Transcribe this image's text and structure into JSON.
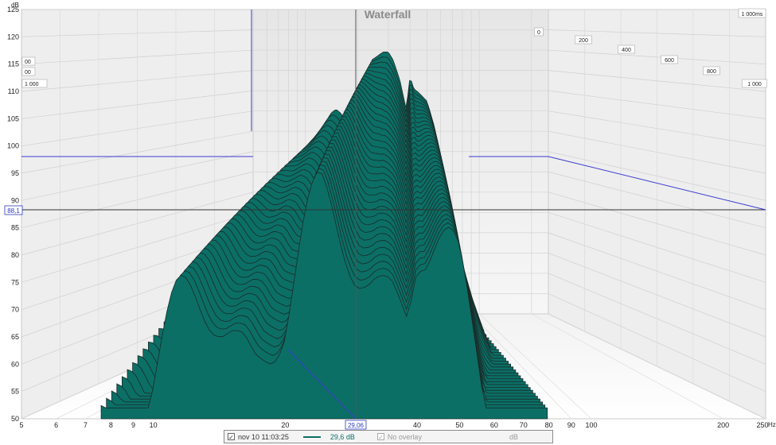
{
  "chart_data": {
    "type": "area",
    "title": "Waterfall",
    "y_unit": "dB",
    "ylim": [
      50,
      125
    ],
    "y_ticks": [
      50,
      55,
      60,
      65,
      70,
      75,
      80,
      85,
      90,
      95,
      100,
      105,
      110,
      115,
      120,
      125
    ],
    "x_unit": "Hz",
    "x_scale": "log",
    "xlim": [
      5,
      250
    ],
    "x_ticks": [
      5,
      6,
      7,
      8,
      9,
      10,
      20,
      30,
      40,
      50,
      60,
      70,
      80,
      90,
      100,
      200,
      250
    ],
    "z_unit": "ms",
    "z_ticks": [
      "0",
      "200",
      "400",
      "600",
      "800",
      "1 000"
    ],
    "z_max_label": "1 000ms",
    "left_depth_labels": [
      "00",
      "00",
      "1 000"
    ],
    "cursor_y_value": "88,1",
    "cursor_x_value": "29,06",
    "fill_color": "#0b6f66",
    "grid": true,
    "series": [
      {
        "name": "nov 10 11:03:25",
        "x": [
          7.6,
          8,
          9,
          10,
          12,
          14,
          15,
          16,
          17,
          18,
          20,
          22,
          24,
          26,
          28,
          30,
          32,
          35,
          38,
          40,
          42,
          45,
          50,
          55,
          60,
          65,
          70,
          75,
          78
        ],
        "values": [
          81,
          83,
          86,
          89,
          94,
          99,
          100,
          99,
          97,
          98,
          98,
          106,
          112,
          113,
          114,
          114,
          112,
          107,
          100,
          108,
          105,
          104,
          102,
          96,
          88,
          77,
          68,
          62,
          59
        ]
      }
    ]
  },
  "legend": {
    "series_label": "nov 10 11:03:25",
    "series_checked": "✓",
    "value_label": "29,6 dB",
    "overlay_checked": "✓",
    "overlay_label": "No overlay",
    "unit_label": "dB"
  }
}
